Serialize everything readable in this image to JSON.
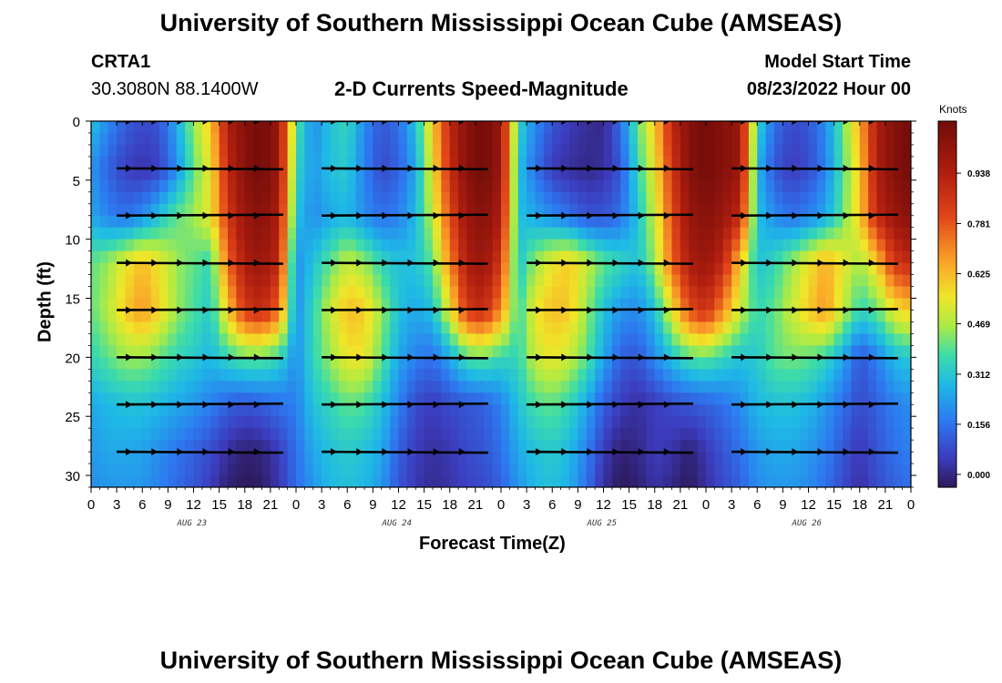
{
  "page": {
    "title_top": "University of Southern Mississippi Ocean Cube (AMSEAS)",
    "title_bottom": "University of Southern Mississippi Ocean Cube (AMSEAS)",
    "station_id": "CRTA1",
    "coords": "30.3080N  88.1400W",
    "plot_title": "2-D Currents Speed-Magnitude",
    "model_start_label": "Model Start Time",
    "model_start_value": "08/23/2022 Hour 00",
    "colorbar_units": "Knots"
  },
  "chart_data": {
    "type": "heatmap",
    "title": "2-D Currents Speed-Magnitude",
    "xlabel": "Forecast Time(Z)",
    "ylabel": "Depth (ft)",
    "x_range_hours": [
      0,
      96
    ],
    "ylim": [
      31,
      0
    ],
    "y_ticks": [
      0,
      5,
      10,
      15,
      20,
      25,
      30
    ],
    "x_tick_labels": [
      "0",
      "3",
      "6",
      "9",
      "12",
      "15",
      "18",
      "21",
      "0",
      "3",
      "6",
      "9",
      "12",
      "15",
      "18",
      "21",
      "0",
      "3",
      "6",
      "9",
      "12",
      "15",
      "18",
      "21",
      "0",
      "3",
      "6",
      "9",
      "12",
      "15",
      "18",
      "21",
      "0"
    ],
    "date_labels": [
      {
        "text": "AUG 23",
        "hour": 12
      },
      {
        "text": "AUG 24",
        "hour": 36
      },
      {
        "text": "AUG 25",
        "hour": 60
      },
      {
        "text": "AUG 26",
        "hour": 84
      }
    ],
    "colorbar": {
      "units": "Knots",
      "range": [
        -0.04,
        1.1
      ],
      "tick_values": [
        0.0,
        0.156,
        0.312,
        0.469,
        0.625,
        0.781,
        0.938
      ],
      "tick_labels": [
        "0.000",
        "0.156",
        "0.312",
        "0.469",
        "0.625",
        "0.781",
        "0.938"
      ]
    },
    "vector_depths_ft": [
      0,
      4,
      8,
      12,
      16,
      20,
      24,
      28
    ],
    "speed_field_knots": {
      "hours": [
        0,
        2,
        4,
        6,
        8,
        10,
        12,
        14,
        16,
        18,
        20,
        22,
        24,
        26,
        28,
        30,
        32,
        34,
        36,
        38,
        40,
        42,
        44,
        46,
        48,
        50,
        52,
        54,
        56,
        58,
        60,
        62,
        64,
        66,
        68,
        70,
        72,
        74,
        76,
        78,
        80,
        82,
        84,
        86,
        88,
        90,
        92,
        94,
        96
      ],
      "depths_ft": [
        0,
        4,
        8,
        12,
        16,
        20,
        24,
        28,
        31
      ],
      "rows": [
        [
          0.3,
          0.2,
          0.12,
          0.08,
          0.1,
          0.25,
          0.45,
          0.6,
          0.95,
          1.05,
          1.1,
          1.0,
          0.4,
          0.2,
          0.3,
          0.35,
          0.2,
          0.1,
          0.15,
          0.3,
          0.6,
          0.9,
          1.05,
          1.1,
          1.0,
          0.35,
          0.2,
          0.1,
          0.05,
          0.02,
          0.0,
          0.15,
          0.4,
          0.6,
          0.9,
          1.05,
          1.1,
          1.05,
          1.0,
          0.35,
          0.15,
          0.08,
          0.1,
          0.2,
          0.4,
          0.65,
          0.95,
          1.05,
          1.1
        ],
        [
          0.22,
          0.12,
          0.06,
          0.03,
          0.06,
          0.2,
          0.4,
          0.55,
          0.9,
          1.05,
          1.1,
          1.0,
          0.35,
          0.22,
          0.3,
          0.32,
          0.18,
          0.08,
          0.12,
          0.25,
          0.55,
          0.88,
          1.05,
          1.1,
          1.0,
          0.3,
          0.15,
          0.05,
          0.02,
          0.0,
          0.02,
          0.1,
          0.35,
          0.55,
          0.85,
          1.05,
          1.1,
          1.05,
          1.0,
          0.28,
          0.1,
          0.05,
          0.08,
          0.18,
          0.38,
          0.6,
          0.95,
          1.05,
          1.1
        ],
        [
          0.25,
          0.18,
          0.15,
          0.2,
          0.3,
          0.4,
          0.45,
          0.55,
          0.85,
          1.0,
          1.05,
          0.95,
          0.3,
          0.2,
          0.25,
          0.28,
          0.2,
          0.15,
          0.18,
          0.28,
          0.5,
          0.8,
          1.0,
          1.05,
          0.95,
          0.3,
          0.25,
          0.2,
          0.15,
          0.1,
          0.1,
          0.15,
          0.3,
          0.5,
          0.8,
          1.0,
          1.05,
          1.0,
          0.9,
          0.3,
          0.2,
          0.15,
          0.18,
          0.25,
          0.4,
          0.6,
          0.9,
          1.0,
          1.05
        ],
        [
          0.4,
          0.45,
          0.55,
          0.62,
          0.55,
          0.45,
          0.4,
          0.35,
          0.75,
          0.95,
          1.0,
          0.9,
          0.2,
          0.3,
          0.4,
          0.5,
          0.45,
          0.35,
          0.3,
          0.3,
          0.4,
          0.7,
          0.95,
          1.0,
          0.85,
          0.3,
          0.45,
          0.55,
          0.6,
          0.5,
          0.4,
          0.35,
          0.3,
          0.45,
          0.75,
          0.95,
          1.0,
          0.9,
          0.6,
          0.3,
          0.35,
          0.45,
          0.55,
          0.65,
          0.55,
          0.45,
          0.6,
          0.85,
          0.9
        ],
        [
          0.4,
          0.48,
          0.6,
          0.68,
          0.58,
          0.45,
          0.38,
          0.32,
          0.6,
          0.85,
          0.9,
          0.75,
          0.2,
          0.35,
          0.5,
          0.62,
          0.6,
          0.45,
          0.3,
          0.25,
          0.3,
          0.55,
          0.85,
          0.9,
          0.7,
          0.35,
          0.55,
          0.62,
          0.6,
          0.45,
          0.3,
          0.22,
          0.2,
          0.3,
          0.55,
          0.8,
          0.88,
          0.7,
          0.5,
          0.35,
          0.4,
          0.5,
          0.6,
          0.68,
          0.5,
          0.35,
          0.4,
          0.55,
          0.6
        ],
        [
          0.35,
          0.4,
          0.45,
          0.45,
          0.4,
          0.35,
          0.32,
          0.28,
          0.35,
          0.4,
          0.4,
          0.35,
          0.2,
          0.35,
          0.45,
          0.55,
          0.55,
          0.4,
          0.25,
          0.18,
          0.15,
          0.25,
          0.38,
          0.4,
          0.35,
          0.35,
          0.5,
          0.55,
          0.5,
          0.4,
          0.25,
          0.12,
          0.1,
          0.2,
          0.3,
          0.38,
          0.4,
          0.35,
          0.3,
          0.32,
          0.4,
          0.42,
          0.4,
          0.35,
          0.25,
          0.1,
          0.18,
          0.28,
          0.32
        ],
        [
          0.25,
          0.28,
          0.3,
          0.3,
          0.28,
          0.25,
          0.22,
          0.18,
          0.12,
          0.1,
          0.12,
          0.15,
          0.18,
          0.3,
          0.35,
          0.4,
          0.38,
          0.3,
          0.18,
          0.08,
          0.05,
          0.08,
          0.1,
          0.12,
          0.18,
          0.3,
          0.38,
          0.4,
          0.35,
          0.25,
          0.12,
          0.05,
          0.02,
          0.05,
          0.08,
          0.1,
          0.12,
          0.15,
          0.2,
          0.28,
          0.3,
          0.3,
          0.28,
          0.22,
          0.15,
          0.08,
          0.12,
          0.18,
          0.2
        ],
        [
          0.22,
          0.25,
          0.25,
          0.24,
          0.2,
          0.16,
          0.12,
          0.08,
          0.02,
          -0.02,
          -0.01,
          0.05,
          0.15,
          0.25,
          0.3,
          0.32,
          0.3,
          0.25,
          0.12,
          0.05,
          0.02,
          0.04,
          0.08,
          0.1,
          0.15,
          0.25,
          0.3,
          0.32,
          0.28,
          0.18,
          0.05,
          -0.02,
          0.0,
          0.05,
          0.03,
          -0.02,
          0.04,
          0.1,
          0.15,
          0.22,
          0.25,
          0.25,
          0.22,
          0.18,
          0.1,
          0.04,
          0.1,
          0.15,
          0.18
        ],
        [
          0.2,
          0.22,
          0.22,
          0.22,
          0.18,
          0.14,
          0.1,
          0.05,
          -0.02,
          -0.04,
          -0.03,
          0.04,
          0.14,
          0.22,
          0.28,
          0.3,
          0.28,
          0.22,
          0.1,
          0.04,
          0.01,
          0.03,
          0.06,
          0.08,
          0.12,
          0.22,
          0.28,
          0.3,
          0.26,
          0.15,
          0.02,
          -0.04,
          -0.02,
          0.03,
          0.0,
          -0.04,
          0.02,
          0.08,
          0.12,
          0.2,
          0.22,
          0.22,
          0.2,
          0.15,
          0.08,
          0.02,
          0.08,
          0.12,
          0.15
        ]
      ]
    }
  }
}
